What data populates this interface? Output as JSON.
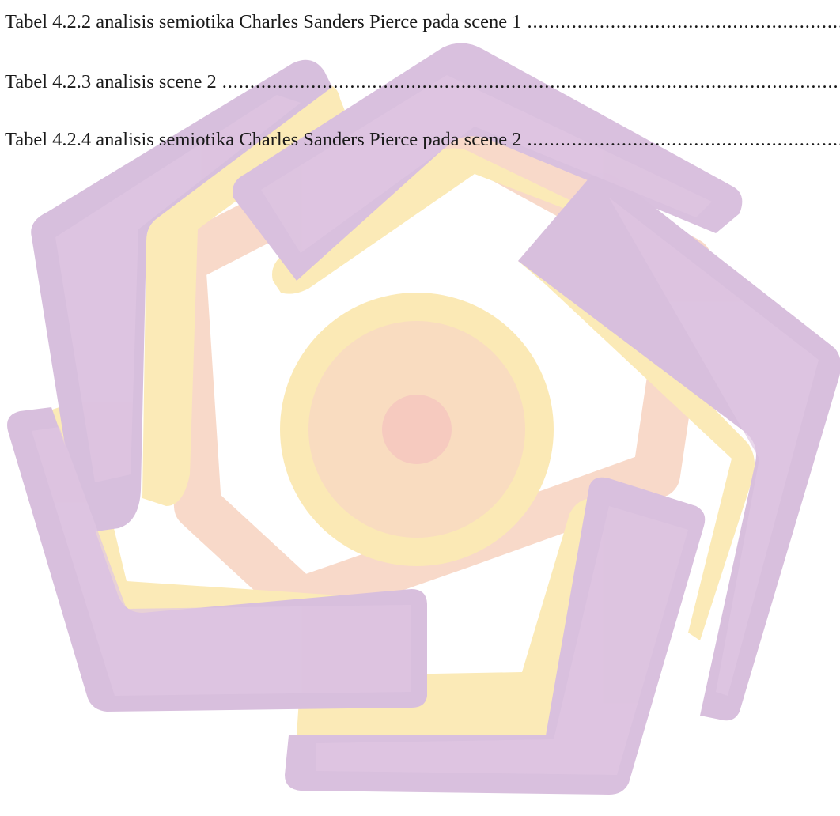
{
  "toc_entries": [
    {
      "label": "Tabel 4.2.2 analisis semiotika Charles Sanders Pierce pada scene 1"
    },
    {
      "label": "Tabel 4.2.3 analisis scene 2"
    },
    {
      "label": "Tabel 4.2.4 analisis semiotika Charles Sanders Pierce pada scene 2"
    }
  ],
  "watermark": {
    "icon": "university-pentagon-logo",
    "colors": {
      "purple": "#d4bcdc",
      "purple_light": "#dcc2e0",
      "yellow": "#fbe9b5",
      "peach": "#f9d6bf",
      "pink": "#f6c9bf"
    }
  }
}
